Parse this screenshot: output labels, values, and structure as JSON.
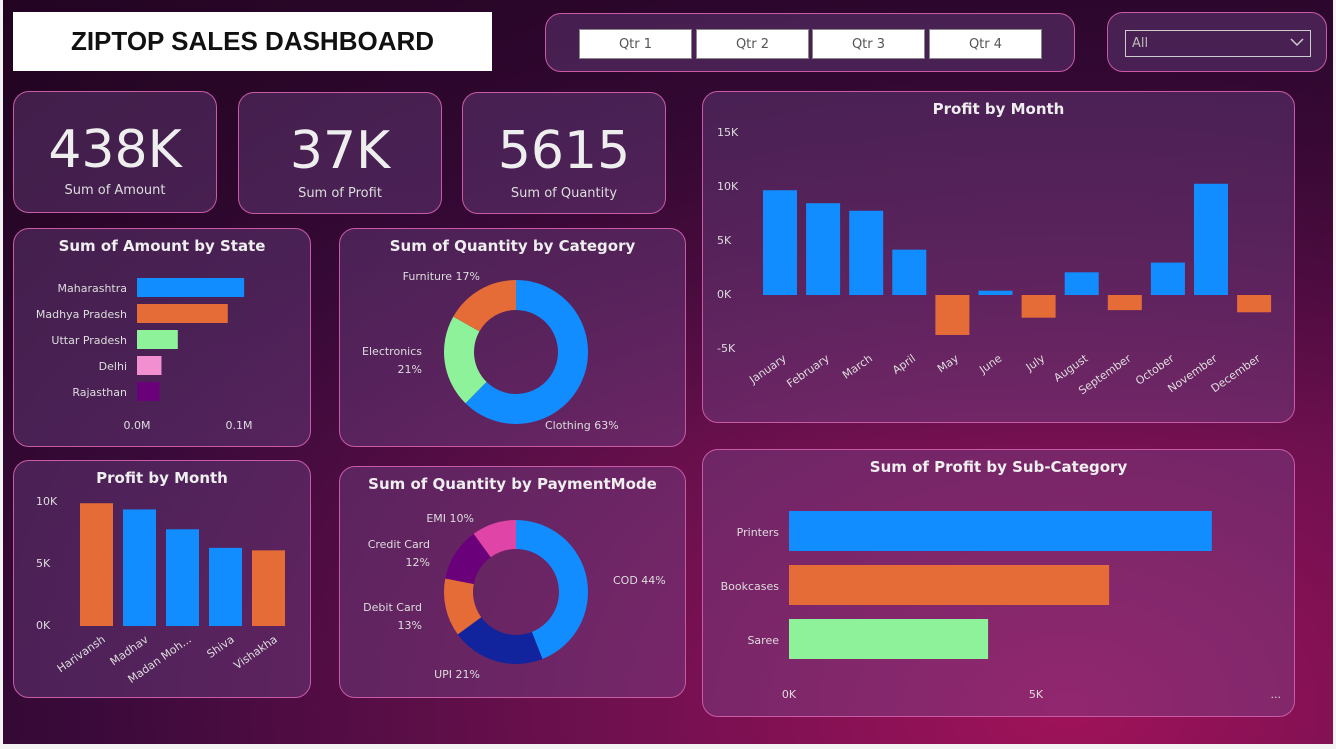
{
  "title": "ZIPTOP SALES DASHBOARD",
  "quarters": [
    "Qtr 1",
    "Qtr 2",
    "Qtr 3",
    "Qtr 4"
  ],
  "dropdown": {
    "value": "All",
    "icon": "chevron-down-icon"
  },
  "kpis": [
    {
      "value": "438K",
      "label": "Sum of Amount"
    },
    {
      "value": "37K",
      "label": "Sum of Profit"
    },
    {
      "value": "5615",
      "label": "Sum of Quantity"
    }
  ],
  "colors": {
    "blue": "#118dff",
    "orange": "#e66c37",
    "green": "#8ef29a",
    "pink": "#f28fd0",
    "purple": "#6b007b",
    "navy": "#12239e",
    "magenta": "#e044a7"
  },
  "chart_data": [
    {
      "id": "state",
      "type": "bar",
      "orientation": "horizontal",
      "title": "Sum of Amount by State",
      "categories": [
        "Maharashtra",
        "Madhya Pradesh",
        "Uttar Pradesh",
        "Delhi",
        "Rajasthan"
      ],
      "values": [
        0.105,
        0.089,
        0.04,
        0.024,
        0.022
      ],
      "unit": "M",
      "ticks": [
        "0.0M",
        "0.1M"
      ],
      "xlim": [
        0,
        0.1
      ]
    },
    {
      "id": "category",
      "type": "pie",
      "donut": true,
      "title": "Sum of Quantity by Category",
      "slices": [
        {
          "name": "Clothing",
          "value": 63,
          "label": "Clothing 63%"
        },
        {
          "name": "Electronics",
          "value": 21,
          "label": "Electronics 21%"
        },
        {
          "name": "Furniture",
          "value": 17,
          "label": "Furniture 17%"
        }
      ]
    },
    {
      "id": "payment",
      "type": "pie",
      "donut": true,
      "title": "Sum of Quantity by PaymentMode",
      "slices": [
        {
          "name": "COD",
          "value": 44,
          "label": "COD 44%"
        },
        {
          "name": "UPI",
          "value": 21,
          "label": "UPI 21%"
        },
        {
          "name": "Debit Card",
          "value": 13,
          "label": "Debit Card 13%"
        },
        {
          "name": "Credit Card",
          "value": 12,
          "label": "Credit Card 12%"
        },
        {
          "name": "EMI",
          "value": 10,
          "label": "EMI 10%"
        }
      ]
    },
    {
      "id": "month",
      "type": "bar",
      "title": "Profit by Month",
      "categories": [
        "January",
        "February",
        "March",
        "April",
        "May",
        "June",
        "July",
        "August",
        "September",
        "October",
        "November",
        "December"
      ],
      "values": [
        9700,
        8500,
        7800,
        4200,
        -3700,
        400,
        -2100,
        2100,
        -1400,
        3000,
        10300,
        -1600
      ],
      "ticks": [
        "15K",
        "10K",
        "5K",
        "0K",
        "-5K"
      ],
      "ylim": [
        -5000,
        15000
      ]
    },
    {
      "id": "person",
      "type": "bar",
      "title": "Profit by Month",
      "categories": [
        "Harivansh",
        "Madhav",
        "Madan Moh...",
        "Shiva",
        "Vishakha"
      ],
      "values": [
        9900,
        9400,
        7800,
        6300,
        6100
      ],
      "ticks": [
        "10K",
        "5K",
        "0K"
      ],
      "ylim": [
        0,
        10000
      ]
    },
    {
      "id": "subcat",
      "type": "bar",
      "orientation": "horizontal",
      "title": "Sum of Profit by Sub-Category",
      "categories": [
        "Printers",
        "Bookcases",
        "Saree"
      ],
      "values": [
        8560,
        6480,
        4030
      ],
      "ticks": [
        "0K",
        "5K",
        "..."
      ],
      "xlim": [
        0,
        10000
      ]
    }
  ]
}
